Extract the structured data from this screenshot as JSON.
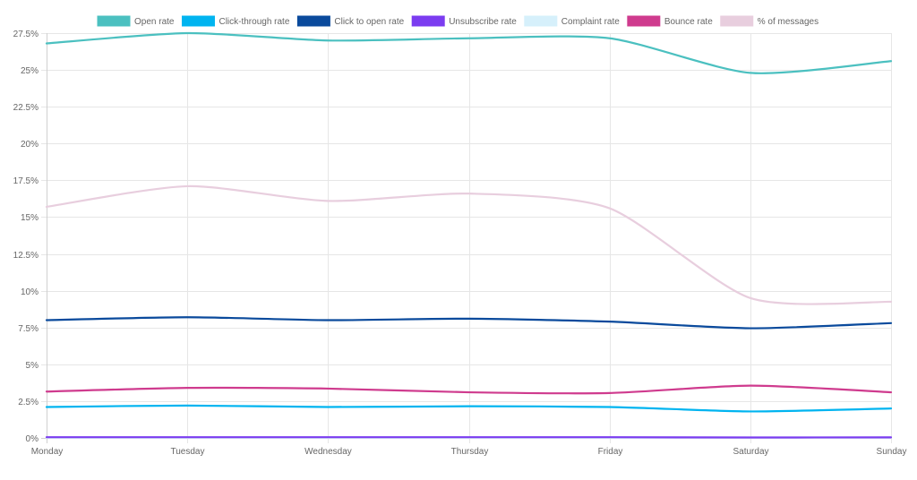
{
  "chart_data": {
    "type": "line",
    "categories": [
      "Monday",
      "Tuesday",
      "Wednesday",
      "Thursday",
      "Friday",
      "Saturday",
      "Sunday"
    ],
    "ylim": [
      0,
      27.5
    ],
    "y_ticks": [
      {
        "value": 0,
        "label": "0%"
      },
      {
        "value": 2.5,
        "label": "2.5%"
      },
      {
        "value": 5,
        "label": "5%"
      },
      {
        "value": 7.5,
        "label": "7.5%"
      },
      {
        "value": 10,
        "label": "10%"
      },
      {
        "value": 12.5,
        "label": "12.5%"
      },
      {
        "value": 15,
        "label": "15%"
      },
      {
        "value": 17.5,
        "label": "17.5%"
      },
      {
        "value": 20,
        "label": "20%"
      },
      {
        "value": 22.5,
        "label": "22.5%"
      },
      {
        "value": 25,
        "label": "25%"
      },
      {
        "value": 27.5,
        "label": "27.5%"
      }
    ],
    "grid": true,
    "legend_position": "top",
    "series": [
      {
        "name": "Open rate",
        "color": "#4bc0c0",
        "values": [
          26.8,
          27.5,
          27.0,
          27.15,
          27.15,
          24.8,
          25.6
        ]
      },
      {
        "name": "Click-through rate",
        "color": "#00b4f0",
        "values": [
          2.1,
          2.2,
          2.1,
          2.15,
          2.1,
          1.8,
          2.0
        ]
      },
      {
        "name": "Click to open rate",
        "color": "#0a4a9c",
        "values": [
          8.0,
          8.2,
          8.0,
          8.1,
          7.9,
          7.45,
          7.8
        ]
      },
      {
        "name": "Unsubscribe rate",
        "color": "#7b3cf0",
        "values": [
          0.05,
          0.05,
          0.05,
          0.05,
          0.05,
          0.03,
          0.04
        ]
      },
      {
        "name": "Complaint rate",
        "color": "#d6f0fb",
        "values": [
          0.01,
          0.01,
          0.01,
          0.01,
          0.01,
          0.01,
          0.01
        ]
      },
      {
        "name": "Bounce rate",
        "color": "#cf3b8e",
        "values": [
          3.15,
          3.4,
          3.35,
          3.1,
          3.05,
          3.55,
          3.1
        ]
      },
      {
        "name": "% of messages",
        "color": "#e8cede",
        "values": [
          15.7,
          17.1,
          16.1,
          16.6,
          15.6,
          9.5,
          9.25
        ]
      }
    ]
  }
}
